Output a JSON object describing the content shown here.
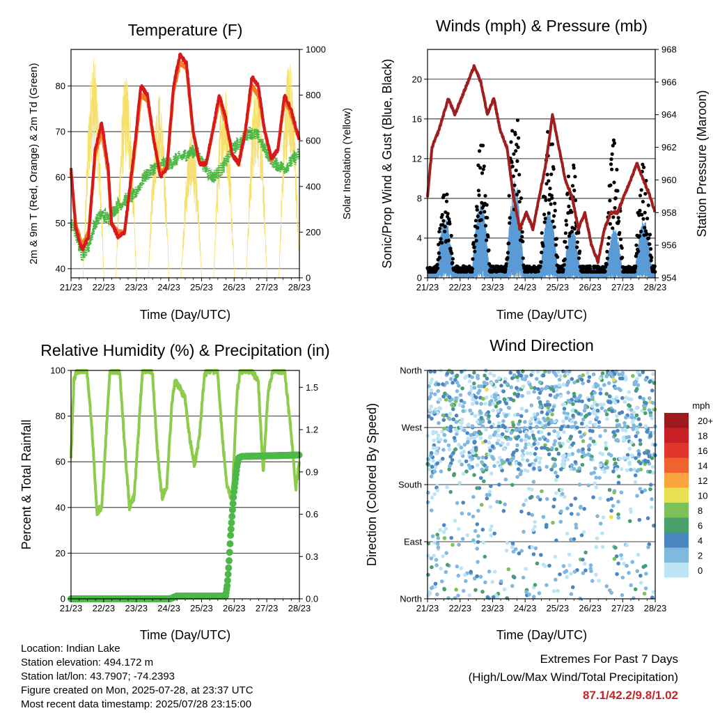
{
  "x_ticks": [
    "21/23",
    "22/23",
    "23/23",
    "24/23",
    "25/23",
    "26/23",
    "27/23",
    "28/23"
  ],
  "info": {
    "location": "Location: Indian Lake",
    "elevation": "Station elevation: 494.172 m",
    "latlon": "Station lat/lon: 43.7907; -74.2393",
    "created": "Figure created on Mon, 2025-07-28, at 23:37 UTC",
    "recent": "Most recent data timestamp: 2025/07/28 23:15:00"
  },
  "extremes": {
    "title": "Extremes For Past 7 Days",
    "subtitle": "(High/Low/Max Wind/Total Precipitation)",
    "values": "87.1/42.2/9.8/1.02"
  },
  "colors": {
    "temp_2m": "#d7191c",
    "temp_9m": "#f07c28",
    "dewpoint": "#4db848",
    "solar": "#f5e06e",
    "sonic_wind": "#5b9bd5",
    "gust": "#000000",
    "pressure": "#a01e1e",
    "rh": "#8ccb4c",
    "precip": "#4db848"
  },
  "chart_data": [
    {
      "type": "line",
      "title": "Temperature (F)",
      "xlabel": "Time (Day/UTC)",
      "ylabel": "2m & 9m T (Red, Orange) & 2m Td (Green)",
      "y2label": "Solar Insolation (Yellow)",
      "x_range": [
        21.96,
        28.96
      ],
      "ylim": [
        38,
        88
      ],
      "y_ticks": [
        40,
        50,
        60,
        70,
        80
      ],
      "y2lim": [
        0,
        1000
      ],
      "y2_ticks": [
        0,
        200,
        400,
        600,
        800,
        1000
      ],
      "series": [
        {
          "key": "temp_2m",
          "x": [
            21.96,
            22.1,
            22.3,
            22.5,
            22.7,
            22.9,
            23.1,
            23.2,
            23.4,
            23.6,
            23.9,
            24.1,
            24.3,
            24.5,
            24.7,
            24.9,
            25.1,
            25.3,
            25.5,
            25.7,
            25.9,
            26.1,
            26.3,
            26.5,
            26.7,
            26.9,
            27.1,
            27.3,
            27.5,
            27.7,
            27.9,
            28.1,
            28.3,
            28.5,
            28.7,
            28.96
          ],
          "values": [
            62,
            49,
            44,
            47,
            66,
            72,
            62,
            50,
            47,
            48,
            66,
            80,
            78,
            68,
            60,
            62,
            80,
            87,
            85,
            70,
            63,
            63,
            70,
            78,
            73,
            65,
            63,
            70,
            82,
            80,
            70,
            64,
            66,
            78,
            75,
            68
          ]
        },
        {
          "key": "temp_9m",
          "x": [
            21.96,
            22.1,
            22.3,
            22.5,
            22.7,
            22.9,
            23.1,
            23.2,
            23.4,
            23.6,
            23.9,
            24.1,
            24.3,
            24.5,
            24.7,
            24.9,
            25.1,
            25.3,
            25.5,
            25.7,
            25.9,
            26.1,
            26.3,
            26.5,
            26.7,
            26.9,
            27.1,
            27.3,
            27.5,
            27.7,
            27.9,
            28.1,
            28.3,
            28.5,
            28.7,
            28.96
          ],
          "values": [
            61,
            50,
            45,
            48,
            65,
            70,
            61,
            50,
            48,
            48,
            65,
            78,
            77,
            68,
            61,
            62,
            79,
            85,
            84,
            70,
            63,
            63,
            70,
            77,
            72,
            65,
            63,
            70,
            80,
            78,
            70,
            64,
            66,
            77,
            74,
            68
          ]
        },
        {
          "key": "dewpoint",
          "x": [
            21.96,
            22.1,
            22.3,
            22.5,
            22.7,
            22.9,
            23.1,
            23.3,
            23.6,
            23.9,
            24.2,
            24.5,
            24.8,
            25.0,
            25.2,
            25.5,
            25.8,
            26.0,
            26.3,
            26.6,
            26.9,
            27.2,
            27.4,
            27.7,
            27.9,
            28.2,
            28.5,
            28.8,
            28.96
          ],
          "values": [
            50,
            48,
            43,
            45,
            50,
            52,
            51,
            53,
            55,
            56,
            60,
            62,
            63,
            63,
            64,
            65,
            66,
            63,
            60,
            62,
            66,
            68,
            70,
            69,
            66,
            63,
            62,
            64,
            65
          ]
        },
        {
          "key": "solar",
          "peaks_x": [
            22.65,
            23.65,
            24.65,
            25.65,
            26.65,
            27.65,
            28.65
          ],
          "peak_values": [
            980,
            900,
            820,
            650,
            880,
            900,
            980
          ],
          "daylight_half_width": 0.32
        }
      ]
    },
    {
      "type": "scatter",
      "title": "Winds (mph) & Pressure (mb)",
      "xlabel": "Time (Day/UTC)",
      "ylabel": "Sonic/Prop Wind & Gust (Blue, Black)",
      "y2label": "Station Pressure (Maroon)",
      "x_range": [
        21.96,
        28.96
      ],
      "ylim": [
        0,
        23
      ],
      "y_ticks": [
        0,
        4,
        8,
        12,
        16,
        20
      ],
      "y2lim": [
        954,
        968
      ],
      "y2_ticks": [
        954,
        956,
        958,
        960,
        962,
        964,
        966,
        968
      ],
      "pressure": {
        "x": [
          21.96,
          22.1,
          22.3,
          22.6,
          22.8,
          23.0,
          23.2,
          23.4,
          23.6,
          23.8,
          24.0,
          24.2,
          24.4,
          24.6,
          24.8,
          25.0,
          25.2,
          25.4,
          25.6,
          25.8,
          26.0,
          26.2,
          26.4,
          26.6,
          26.8,
          27.0,
          27.2,
          27.4,
          27.6,
          27.8,
          28.0,
          28.2,
          28.4,
          28.6,
          28.8,
          28.96
        ],
        "values": [
          959,
          962,
          963,
          965,
          964,
          965,
          966,
          967,
          966,
          964,
          965,
          963,
          962,
          959,
          957,
          958,
          957,
          959,
          961,
          964,
          962,
          960,
          959,
          957,
          958,
          956,
          955,
          957,
          958,
          958,
          959,
          960,
          961,
          960,
          959,
          958
        ]
      },
      "wind_peaks_x": [
        22.5,
        23.6,
        24.65,
        25.7,
        26.4,
        27.7,
        28.6
      ],
      "wind_peak_values": [
        6,
        8,
        9.8,
        7,
        5,
        5,
        6
      ],
      "gust_peak_values": [
        9,
        15,
        18,
        16,
        13,
        14,
        12
      ]
    },
    {
      "type": "line",
      "title": "Relative Humidity (%) & Precipitation (in)",
      "xlabel": "Time (Day/UTC)",
      "ylabel": "Percent & Total Rainfall",
      "x_range": [
        21.96,
        28.96
      ],
      "ylim": [
        0,
        100
      ],
      "y_ticks": [
        0,
        20,
        40,
        60,
        80,
        100
      ],
      "y2lim": [
        0,
        1.62
      ],
      "y2_ticks": [
        0.0,
        0.3,
        0.6,
        0.9,
        1.2,
        1.5
      ],
      "rh": {
        "x": [
          21.96,
          22.05,
          22.15,
          22.3,
          22.45,
          22.6,
          22.75,
          22.9,
          23.05,
          23.15,
          23.3,
          23.45,
          23.6,
          23.75,
          23.9,
          24.05,
          24.15,
          24.3,
          24.45,
          24.6,
          24.75,
          24.9,
          25.05,
          25.15,
          25.3,
          25.45,
          25.6,
          25.75,
          25.9,
          26.05,
          26.15,
          26.3,
          26.45,
          26.6,
          26.75,
          26.9,
          27.05,
          27.15,
          27.3,
          27.5,
          27.7,
          27.85,
          28.0,
          28.15,
          28.3,
          28.5,
          28.7,
          28.85,
          28.96
        ],
        "values": [
          62,
          96,
          100,
          100,
          100,
          75,
          38,
          40,
          75,
          100,
          100,
          100,
          68,
          40,
          45,
          78,
          100,
          100,
          100,
          66,
          44,
          50,
          85,
          96,
          92,
          88,
          70,
          58,
          72,
          98,
          100,
          100,
          100,
          70,
          48,
          44,
          90,
          100,
          100,
          100,
          95,
          55,
          90,
          100,
          100,
          100,
          74,
          48,
          60
        ]
      },
      "precip": {
        "x": [
          21.96,
          25.0,
          25.2,
          26.7,
          26.75,
          26.8,
          26.85,
          26.9,
          26.95,
          27.0,
          27.05,
          27.1,
          27.2,
          28.96
        ],
        "values": [
          0,
          0,
          0.02,
          0.02,
          0.1,
          0.25,
          0.45,
          0.6,
          0.75,
          0.85,
          0.95,
          1.0,
          1.01,
          1.02
        ]
      }
    },
    {
      "type": "scatter",
      "title": "Wind Direction",
      "xlabel": "Time (Day/UTC)",
      "ylabel": "Direction (Colored By Speed)",
      "x_range": [
        21.96,
        28.96
      ],
      "ylim": [
        0,
        360
      ],
      "y_ticks": [
        0,
        90,
        180,
        270,
        360
      ],
      "y_tick_labels": [
        "North",
        "East",
        "South",
        "West",
        "North"
      ],
      "colorbar": {
        "title": "mph",
        "labels": [
          "20+",
          "18",
          "16",
          "14",
          "12",
          "10",
          "8",
          "6",
          "4",
          "2",
          "0"
        ],
        "colors": [
          "#9e1a1d",
          "#c92027",
          "#e0362c",
          "#f0622f",
          "#f7a53c",
          "#e8e050",
          "#7ec05a",
          "#4aa06a",
          "#4a86c0",
          "#80b8e0",
          "#bde4f5"
        ]
      }
    }
  ]
}
